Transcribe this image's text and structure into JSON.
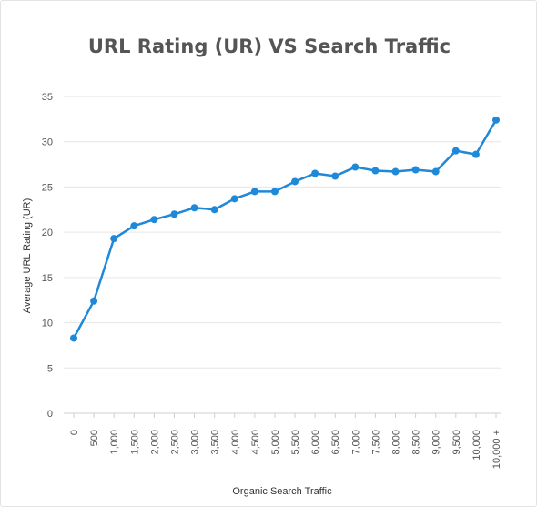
{
  "chart_data": {
    "type": "line",
    "title": "URL Rating (UR) VS Search Traffic",
    "xlabel": "Organic Search Traffic",
    "ylabel": "Average URL Rating (UR)",
    "ylim": [
      0,
      35
    ],
    "yticks": [
      0,
      5,
      10,
      15,
      20,
      25,
      30,
      35
    ],
    "categories": [
      "0",
      "500",
      "1,000",
      "1,500",
      "2,000",
      "2,500",
      "3,000",
      "3,500",
      "4,000",
      "4,500",
      "5,000",
      "5,500",
      "6,000",
      "6,500",
      "7,000",
      "7,500",
      "8,000",
      "8,500",
      "9,000",
      "9,500",
      "10,000",
      "10,000 +"
    ],
    "series": [
      {
        "values": [
          8.3,
          12.4,
          19.3,
          20.7,
          21.4,
          22.0,
          22.7,
          22.5,
          23.7,
          24.5,
          24.5,
          25.6,
          26.5,
          26.2,
          27.2,
          26.8,
          26.7,
          26.9,
          26.7,
          29.0,
          28.6,
          32.4
        ]
      }
    ],
    "line_color": "#1e88d9",
    "grid": true,
    "legend": "none"
  }
}
